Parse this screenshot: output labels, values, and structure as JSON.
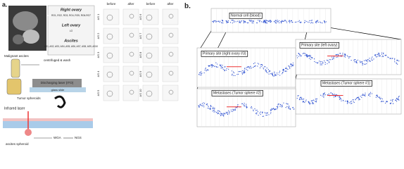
{
  "panel_a": {
    "label": "a.",
    "mri_labels": [
      {
        "title": "Right ovary",
        "samples": "RO1, RO2, RO3, RO4, RO5, RO6-RO7"
      },
      {
        "title": "Left ovary",
        "samples": "LO"
      },
      {
        "title": "Ascites",
        "samples": "AS1, AS2, AS3, AS4, AS5, AS6, AS7, AS8, AS9, AS10"
      }
    ],
    "workflow": {
      "ascites": "Malignant ascites",
      "centrifuge": "centrifuged & wash",
      "spheroids": "Tumor spheroids",
      "slide_top": "Discharging laser (ITO)",
      "slide": "glass slide",
      "laser": "Infrared laser",
      "sphere": "ascites spheroid",
      "wga": "WGA",
      "ngs": "NGS"
    },
    "grid": {
      "headers": [
        "before",
        "after",
        "before",
        "after"
      ],
      "rows_left": [
        "AS 1",
        "AS 2",
        "AS 3",
        "AS 4",
        "AS 5"
      ],
      "rows_right": [
        "AS 6",
        "AS 7",
        "AS 8",
        "AS 9",
        "AS 10"
      ]
    }
  },
  "panel_b": {
    "label": "b.",
    "plots": [
      "Normal cell (blood)",
      "Primary site (left ovary)",
      "Primary site (right ovary #3)",
      "Metastases (Tumor sphere #1)",
      "Metastases (Tumor sphere #2)"
    ]
  }
}
